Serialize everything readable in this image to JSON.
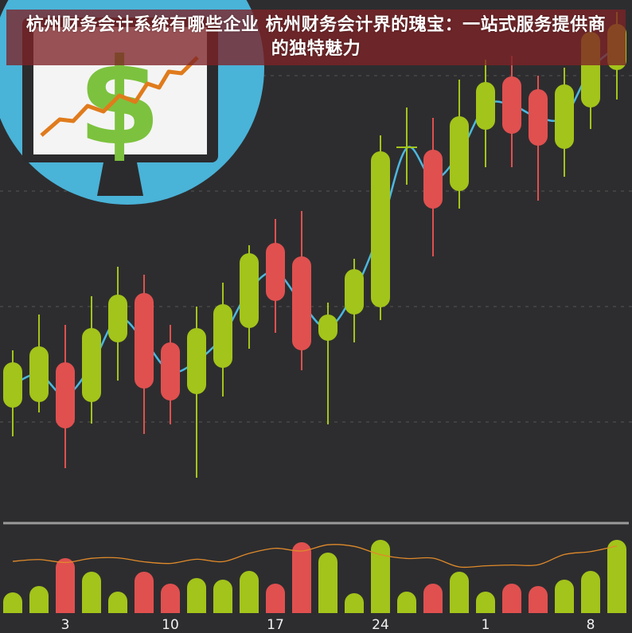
{
  "title": "杭州财务会计系统有哪些企业 杭州财务会计界的瑰宝：一站式服务提供商的独特魅力",
  "colors": {
    "background": "#2d2d2f",
    "up": "#a3c41a",
    "down": "#e0504f",
    "price_line": "#4cb8e0",
    "volume_line": "#e08a2a",
    "circle": "#4ab3d8"
  },
  "illustration": {
    "icon": "monitor-dollar-chart-icon",
    "symbol": "$"
  },
  "chart_data": {
    "type": "candlestick",
    "x_tick_labels": [
      {
        "index": 2,
        "label": "3"
      },
      {
        "index": 6,
        "label": "10"
      },
      {
        "index": 10,
        "label": "17"
      },
      {
        "index": 14,
        "label": "24"
      },
      {
        "index": 18,
        "label": "1"
      },
      {
        "index": 22,
        "label": "8"
      }
    ],
    "grid": "dashed horizontal",
    "candles": [
      {
        "o": 29.6,
        "c": 41,
        "h": 44,
        "l": 22.4
      },
      {
        "o": 31,
        "c": 45,
        "h": 53,
        "l": 28.4
      },
      {
        "o": 41,
        "c": 24.4,
        "h": 50.4,
        "l": 14.4
      },
      {
        "o": 31,
        "c": 49.6,
        "h": 57.6,
        "l": 25.6
      },
      {
        "o": 46,
        "c": 58,
        "h": 65,
        "l": 36.4
      },
      {
        "o": 58.4,
        "c": 34.4,
        "h": 63,
        "l": 23
      },
      {
        "o": 46,
        "c": 31.4,
        "h": 50.4,
        "l": 25.4
      },
      {
        "o": 33,
        "c": 49.6,
        "h": 55,
        "l": 12
      },
      {
        "o": 39.6,
        "c": 55.6,
        "h": 61,
        "l": 32.4
      },
      {
        "o": 49.6,
        "c": 68.4,
        "h": 70.4,
        "l": 44.4
      },
      {
        "o": 71,
        "c": 56.4,
        "h": 77,
        "l": 48.4
      },
      {
        "o": 67.6,
        "c": 44,
        "h": 79,
        "l": 39
      },
      {
        "o": 46.4,
        "c": 53,
        "h": 56,
        "l": 25.4
      },
      {
        "o": 53,
        "c": 64.4,
        "h": 67,
        "l": 46
      },
      {
        "o": 54.8,
        "c": 94,
        "h": 98,
        "l": 51.6
      },
      {
        "o": 94.6,
        "c": 95,
        "h": 105,
        "l": 85.6
      },
      {
        "o": 94.4,
        "c": 79.6,
        "h": 102.4,
        "l": 67.6
      },
      {
        "o": 84,
        "c": 102.8,
        "h": 112,
        "l": 79.6
      },
      {
        "o": 99.4,
        "c": 111.4,
        "h": 117,
        "l": 90
      },
      {
        "o": 112.8,
        "c": 98.4,
        "h": 118,
        "l": 90
      },
      {
        "o": 109.6,
        "c": 95.4,
        "h": 113,
        "l": 81.6
      },
      {
        "o": 94.6,
        "c": 110.8,
        "h": 115,
        "l": 87.6
      },
      {
        "o": 105,
        "c": 124,
        "h": 127,
        "l": 99.6
      },
      {
        "o": 114.4,
        "c": 126,
        "h": 129,
        "l": 107
      }
    ],
    "volume": [
      26,
      34,
      69,
      52,
      27,
      52,
      37,
      44,
      42,
      53,
      37,
      89,
      76,
      25,
      92,
      27,
      37,
      52,
      27,
      37,
      34,
      42,
      53,
      92
    ]
  }
}
